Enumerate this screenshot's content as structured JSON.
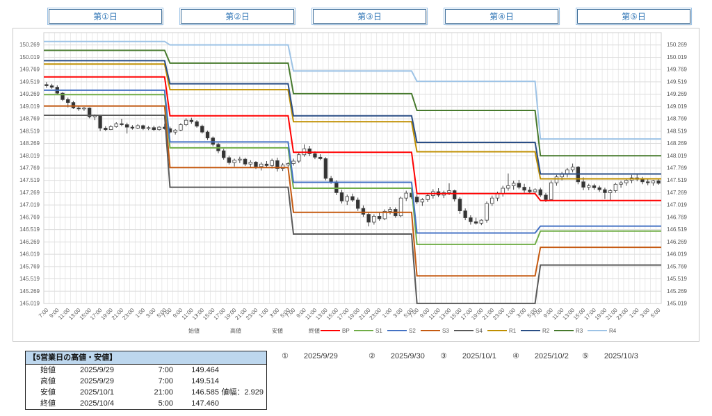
{
  "day_buttons": {
    "labels": [
      "第①日",
      "第②日",
      "第③日",
      "第④日",
      "第⑤日"
    ],
    "border_color": "#41719C",
    "text_color": "#2E74B5"
  },
  "chart_data": {
    "type": "candlestick",
    "title": "",
    "grid": true,
    "grid_color": "#DCDCDC",
    "axis_text_color": "#595959",
    "y_axis": {
      "min": 145.019,
      "max": 150.519,
      "tick_step": 0.25,
      "tick_labels": [
        "150.269",
        "150.019",
        "149.769",
        "149.519",
        "149.269",
        "149.019",
        "148.769",
        "148.519",
        "148.269",
        "148.019",
        "147.769",
        "147.519",
        "147.269",
        "147.019",
        "146.769",
        "146.519",
        "146.269",
        "146.019",
        "145.769",
        "145.519",
        "145.269",
        "145.019"
      ]
    },
    "x_axis": {
      "days": 5,
      "candles_per_day": 23,
      "tick_labels_per_day": [
        "7:00",
        "9:00",
        "11:00",
        "13:00",
        "15:00",
        "17:00",
        "19:00",
        "21:00",
        "23:00",
        "1:00",
        "3:00",
        "5:00"
      ]
    },
    "candle_legend": [
      "始値",
      "高値",
      "安値",
      "終値"
    ],
    "candle_up_color": "#FFFFFF",
    "candle_down_color": "#333333",
    "candle_border_color": "#404040",
    "pivot_series": [
      {
        "name": "BP",
        "color": "#FF0000",
        "values": [
          149.62,
          148.83,
          148.09,
          147.25,
          147.11
        ]
      },
      {
        "name": "S1",
        "color": "#70AD47",
        "values": [
          149.26,
          148.18,
          147.36,
          146.22,
          146.49
        ]
      },
      {
        "name": "S2",
        "color": "#4472C4",
        "values": [
          149.35,
          148.3,
          147.48,
          146.45,
          146.59
        ]
      },
      {
        "name": "S3",
        "color": "#C55A11",
        "values": [
          149.03,
          147.78,
          146.87,
          145.58,
          146.16
        ]
      },
      {
        "name": "S4",
        "color": "#595959",
        "values": [
          148.84,
          147.38,
          146.43,
          145.02,
          145.8
        ]
      },
      {
        "name": "R1",
        "color": "#BF8F00",
        "values": [
          149.88,
          149.36,
          148.71,
          148.1,
          147.55
        ]
      },
      {
        "name": "R2",
        "color": "#2A4E85",
        "values": [
          149.95,
          149.48,
          148.83,
          148.29,
          147.65
        ]
      },
      {
        "name": "R3",
        "color": "#477A2D",
        "values": [
          150.16,
          149.9,
          149.28,
          148.94,
          148.02
        ]
      },
      {
        "name": "R4",
        "color": "#9DC3E6",
        "values": [
          150.34,
          150.27,
          149.74,
          149.53,
          148.36
        ]
      }
    ],
    "candles": {
      "note": "hourly OHLC, 23 candles per day from 7:00 to 5:00",
      "days": [
        [
          [
            149.464,
            149.514,
            149.4,
            149.44
          ],
          [
            149.44,
            149.48,
            149.38,
            149.41
          ],
          [
            149.41,
            149.45,
            149.26,
            149.29
          ],
          [
            149.29,
            149.31,
            149.13,
            149.16
          ],
          [
            149.16,
            149.2,
            149.0,
            149.1
          ],
          [
            149.1,
            149.13,
            148.97,
            148.99
          ],
          [
            148.99,
            149.02,
            148.93,
            148.97
          ],
          [
            148.97,
            149.01,
            148.93,
            148.99
          ],
          [
            148.99,
            149.0,
            148.78,
            148.81
          ],
          [
            148.81,
            148.86,
            148.74,
            148.83
          ],
          [
            148.83,
            148.84,
            148.52,
            148.58
          ],
          [
            148.58,
            148.62,
            148.52,
            148.55
          ],
          [
            148.55,
            148.64,
            148.54,
            148.61
          ],
          [
            148.61,
            148.7,
            148.59,
            148.67
          ],
          [
            148.67,
            148.77,
            148.62,
            148.65
          ],
          [
            148.65,
            148.69,
            148.47,
            148.6
          ],
          [
            148.6,
            148.64,
            148.55,
            148.58
          ],
          [
            148.58,
            148.66,
            148.56,
            148.63
          ],
          [
            148.63,
            148.65,
            148.54,
            148.57
          ],
          [
            148.57,
            148.62,
            148.54,
            148.59
          ],
          [
            148.59,
            148.63,
            148.52,
            148.55
          ],
          [
            148.55,
            148.62,
            148.53,
            148.6
          ],
          [
            148.6,
            148.67,
            148.55,
            148.57
          ]
        ],
        [
          [
            148.57,
            148.61,
            148.47,
            148.5
          ],
          [
            148.5,
            148.56,
            148.45,
            148.54
          ],
          [
            148.54,
            148.68,
            148.52,
            148.65
          ],
          [
            148.65,
            148.78,
            148.62,
            148.74
          ],
          [
            148.74,
            148.79,
            148.67,
            148.71
          ],
          [
            148.71,
            148.74,
            148.59,
            148.62
          ],
          [
            148.62,
            148.65,
            148.47,
            148.5
          ],
          [
            148.5,
            148.53,
            148.34,
            148.38
          ],
          [
            148.38,
            148.41,
            148.21,
            148.25
          ],
          [
            148.25,
            148.28,
            148.07,
            148.12
          ],
          [
            148.12,
            148.16,
            147.94,
            147.98
          ],
          [
            147.98,
            148.02,
            147.84,
            147.88
          ],
          [
            147.88,
            147.96,
            147.8,
            147.93
          ],
          [
            147.93,
            148.0,
            147.87,
            147.95
          ],
          [
            147.95,
            147.98,
            147.81,
            147.85
          ],
          [
            147.85,
            147.93,
            147.78,
            147.89
          ],
          [
            147.89,
            147.91,
            147.75,
            147.8
          ],
          [
            147.8,
            147.89,
            147.72,
            147.85
          ],
          [
            147.85,
            147.91,
            147.78,
            147.82
          ],
          [
            147.82,
            147.96,
            147.76,
            147.92
          ],
          [
            147.92,
            147.98,
            147.7,
            147.76
          ],
          [
            147.76,
            147.87,
            147.71,
            147.83
          ],
          [
            147.83,
            147.89,
            147.76,
            147.86
          ]
        ],
        [
          [
            147.86,
            147.96,
            147.82,
            147.91
          ],
          [
            147.91,
            148.08,
            147.87,
            148.04
          ],
          [
            148.04,
            148.25,
            148.0,
            148.16
          ],
          [
            148.16,
            148.22,
            148.01,
            148.06
          ],
          [
            148.06,
            148.11,
            147.95,
            147.99
          ],
          [
            147.99,
            148.05,
            147.93,
            147.96
          ],
          [
            147.96,
            147.99,
            147.52,
            147.56
          ],
          [
            147.56,
            147.61,
            147.45,
            147.49
          ],
          [
            147.49,
            147.52,
            147.22,
            147.27
          ],
          [
            147.27,
            147.33,
            147.05,
            147.1
          ],
          [
            147.1,
            147.23,
            147.02,
            147.19
          ],
          [
            147.19,
            147.25,
            147.08,
            147.12
          ],
          [
            147.12,
            147.17,
            146.9,
            146.95
          ],
          [
            146.95,
            147.01,
            146.78,
            146.83
          ],
          [
            146.83,
            146.88,
            146.585,
            146.67
          ],
          [
            146.67,
            146.83,
            146.62,
            146.79
          ],
          [
            146.79,
            146.87,
            146.7,
            146.74
          ],
          [
            146.74,
            146.93,
            146.71,
            146.89
          ],
          [
            146.89,
            146.98,
            146.83,
            146.93
          ],
          [
            146.93,
            146.97,
            146.76,
            146.8
          ],
          [
            146.8,
            147.19,
            146.77,
            147.16
          ],
          [
            147.16,
            147.31,
            147.1,
            147.26
          ],
          [
            147.26,
            147.32,
            147.14,
            147.18
          ]
        ],
        [
          [
            147.18,
            147.23,
            147.04,
            147.08
          ],
          [
            147.08,
            147.16,
            147.0,
            147.13
          ],
          [
            147.13,
            147.26,
            147.08,
            147.21
          ],
          [
            147.21,
            147.34,
            147.15,
            147.29
          ],
          [
            147.29,
            147.36,
            147.18,
            147.22
          ],
          [
            147.22,
            147.31,
            147.16,
            147.27
          ],
          [
            147.27,
            147.46,
            147.22,
            147.31
          ],
          [
            147.31,
            147.33,
            147.09,
            147.14
          ],
          [
            147.14,
            147.18,
            146.84,
            146.9
          ],
          [
            146.9,
            146.95,
            146.71,
            146.76
          ],
          [
            146.76,
            146.81,
            146.62,
            146.68
          ],
          [
            146.68,
            146.76,
            146.62,
            146.65
          ],
          [
            146.65,
            146.73,
            146.61,
            146.71
          ],
          [
            146.71,
            147.09,
            146.66,
            147.05
          ],
          [
            147.05,
            147.21,
            147.0,
            147.16
          ],
          [
            147.16,
            147.29,
            147.1,
            147.25
          ],
          [
            147.25,
            147.41,
            147.19,
            147.36
          ],
          [
            147.36,
            147.66,
            147.31,
            147.41
          ],
          [
            147.41,
            147.51,
            147.33,
            147.46
          ],
          [
            147.46,
            147.53,
            147.34,
            147.38
          ],
          [
            147.38,
            147.45,
            147.27,
            147.32
          ],
          [
            147.32,
            147.39,
            147.25,
            147.29
          ],
          [
            147.29,
            147.36,
            147.23,
            147.33
          ]
        ],
        [
          [
            147.33,
            147.37,
            147.18,
            147.22
          ],
          [
            147.22,
            147.26,
            147.08,
            147.13
          ],
          [
            147.13,
            147.52,
            147.1,
            147.47
          ],
          [
            147.47,
            147.63,
            147.41,
            147.59
          ],
          [
            147.59,
            147.69,
            147.52,
            147.65
          ],
          [
            147.65,
            147.77,
            147.58,
            147.73
          ],
          [
            147.73,
            147.86,
            147.68,
            147.79
          ],
          [
            147.79,
            147.81,
            147.44,
            147.49
          ],
          [
            147.49,
            147.58,
            147.32,
            147.38
          ],
          [
            147.38,
            147.45,
            147.32,
            147.41
          ],
          [
            147.41,
            147.45,
            147.33,
            147.37
          ],
          [
            147.37,
            147.41,
            147.29,
            147.33
          ],
          [
            147.33,
            147.37,
            147.14,
            147.27
          ],
          [
            147.27,
            147.34,
            147.12,
            147.31
          ],
          [
            147.31,
            147.47,
            147.27,
            147.44
          ],
          [
            147.44,
            147.51,
            147.37,
            147.47
          ],
          [
            147.47,
            147.55,
            147.41,
            147.52
          ],
          [
            147.52,
            147.63,
            147.46,
            147.57
          ],
          [
            147.57,
            147.64,
            147.5,
            147.54
          ],
          [
            147.54,
            147.59,
            147.44,
            147.49
          ],
          [
            147.49,
            147.55,
            147.42,
            147.47
          ],
          [
            147.47,
            147.53,
            147.41,
            147.51
          ],
          [
            147.51,
            147.54,
            147.43,
            147.46
          ]
        ]
      ]
    }
  },
  "summary_table": {
    "title": "【5営業日の高値・安値】",
    "header_bg": "#BDD7EE",
    "rows": [
      {
        "label": "始値",
        "date": "2025/9/29",
        "time": "7:00",
        "value": "149.464",
        "extra": ""
      },
      {
        "label": "高値",
        "date": "2025/9/29",
        "time": "7:00",
        "value": "149.514",
        "extra": ""
      },
      {
        "label": "安値",
        "date": "2025/10/1",
        "time": "21:00",
        "value": "146.585",
        "extra": "値幅：2.929"
      },
      {
        "label": "終値",
        "date": "2025/10/4",
        "time": "5:00",
        "value": "147.460",
        "extra": ""
      }
    ]
  },
  "date_legend": [
    {
      "num": "①",
      "date": "2025/9/29"
    },
    {
      "num": "②",
      "date": "2025/9/30"
    },
    {
      "num": "③",
      "date": "2025/10/1"
    },
    {
      "num": "④",
      "date": "2025/10/2"
    },
    {
      "num": "⑤",
      "date": "2025/10/3"
    }
  ]
}
